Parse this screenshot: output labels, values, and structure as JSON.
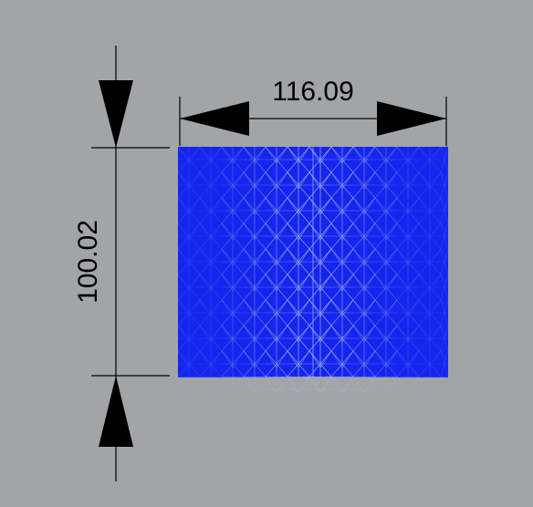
{
  "viewport": {
    "background_color": "#a2a4a8"
  },
  "dimensions": {
    "width_value": "116.09",
    "height_value": "100.02",
    "line_color": "#000000"
  },
  "pattern": {
    "name": "asanoha-lattice",
    "stroke_color": "#1f2bf2",
    "fill_color": "#1426ee"
  }
}
